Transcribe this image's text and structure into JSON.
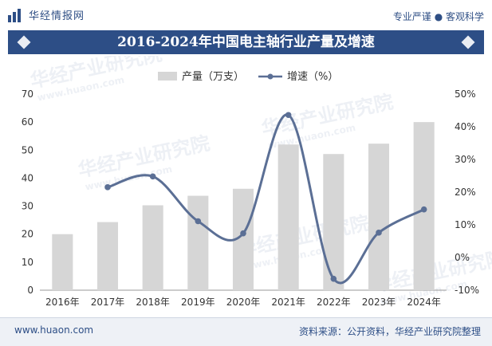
{
  "header": {
    "logo_text": "华经情报网",
    "tagline": "专业严谨 ● 客观科学"
  },
  "footer": {
    "website": "www.huaon.com",
    "source": "资料来源：公开资料，华经产业研究院整理"
  },
  "watermark": {
    "cn": "华经产业研究院",
    "url": "www.huaon.com"
  },
  "colors": {
    "bar": "#d6d6d6",
    "line": "#5b6f95",
    "title_bg": "#2d4e86"
  },
  "chart_data": {
    "type": "bar",
    "title": "2016-2024年中国电主轴行业产量及增速",
    "categories": [
      "2016年",
      "2017年",
      "2018年",
      "2019年",
      "2020年",
      "2021年",
      "2022年",
      "2023年",
      "2024年"
    ],
    "series": [
      {
        "name": "产量（万支）",
        "type": "bar",
        "axis": "left",
        "values": [
          20,
          24.3,
          30.3,
          33.7,
          36.2,
          52,
          48.6,
          52.3,
          60
        ]
      },
      {
        "name": "增速（%）",
        "type": "line",
        "axis": "right",
        "values": [
          null,
          21.5,
          24.8,
          11.1,
          7.4,
          43.6,
          -6.5,
          7.6,
          14.7
        ]
      }
    ],
    "y_left": {
      "min": 0,
      "max": 70,
      "ticks": [
        0,
        10,
        20,
        30,
        40,
        50,
        60,
        70
      ]
    },
    "y_right": {
      "min": -10,
      "max": 50,
      "ticks": [
        "-10%",
        "0%",
        "10%",
        "20%",
        "30%",
        "40%",
        "50%"
      ]
    },
    "legend": "top-center",
    "grid": false
  }
}
